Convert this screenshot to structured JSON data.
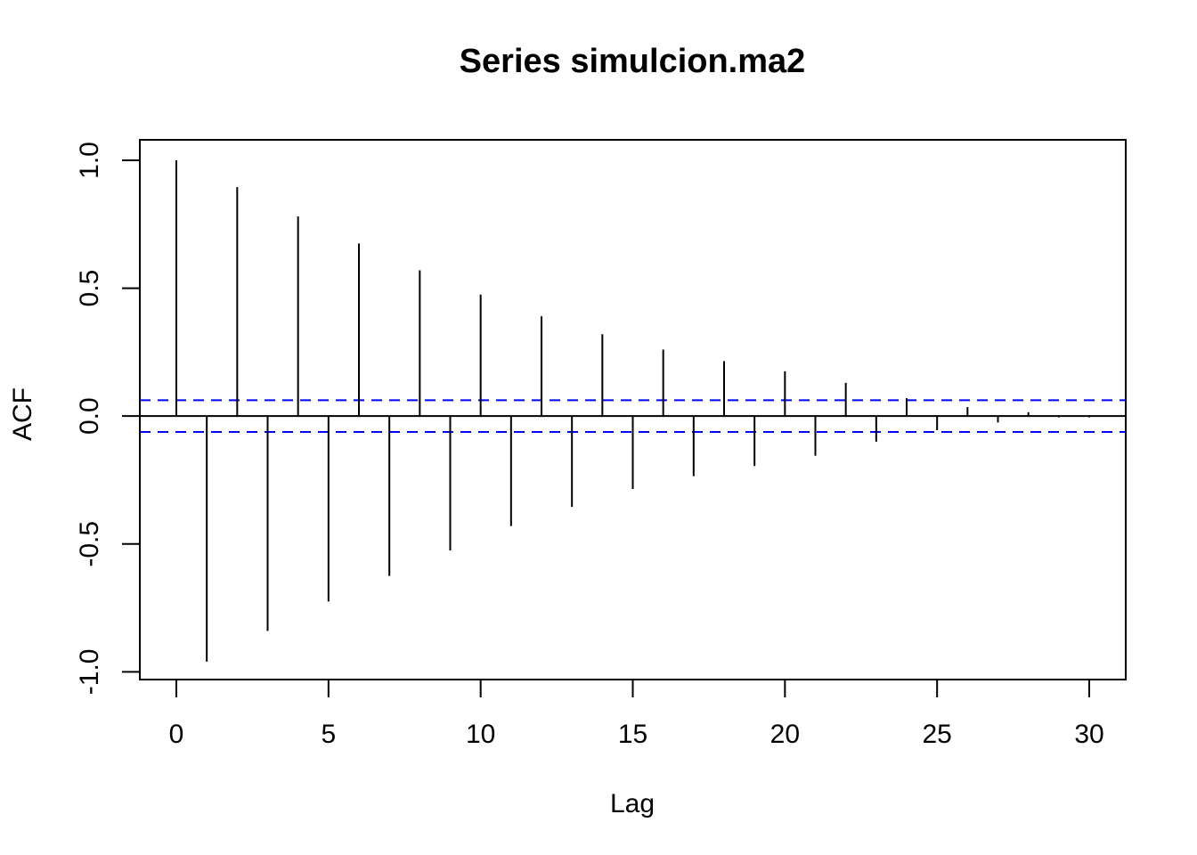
{
  "chart_data": {
    "type": "bar",
    "title": "Series  simulcion.ma2",
    "xlabel": "Lag",
    "ylabel": "ACF",
    "xlim": [
      -1.2,
      31.2
    ],
    "ylim": [
      -1.03,
      1.08
    ],
    "x_ticks": [
      0,
      5,
      10,
      15,
      20,
      25,
      30
    ],
    "x_tick_labels": [
      "0",
      "5",
      "10",
      "15",
      "20",
      "25",
      "30"
    ],
    "y_ticks": [
      -1.0,
      -0.5,
      0.0,
      0.5,
      1.0
    ],
    "y_tick_labels": [
      "-1.0",
      "-0.5",
      "0.0",
      "0.5",
      "1.0"
    ],
    "lags": [
      0,
      1,
      2,
      3,
      4,
      5,
      6,
      7,
      8,
      9,
      10,
      11,
      12,
      13,
      14,
      15,
      16,
      17,
      18,
      19,
      20,
      21,
      22,
      23,
      24,
      25,
      26,
      27,
      28,
      29,
      30
    ],
    "acf": [
      1.0,
      -0.96,
      0.895,
      -0.84,
      0.78,
      -0.725,
      0.675,
      -0.625,
      0.57,
      -0.525,
      0.475,
      -0.43,
      0.39,
      -0.355,
      0.32,
      -0.285,
      0.26,
      -0.235,
      0.215,
      -0.195,
      0.175,
      -0.155,
      0.13,
      -0.1,
      0.07,
      -0.055,
      0.035,
      -0.025,
      0.015,
      -0.005,
      -0.005
    ],
    "confidence_bound": 0.062,
    "confidence_color": "#0000ff",
    "bar_color": "#000000",
    "grid": false
  }
}
